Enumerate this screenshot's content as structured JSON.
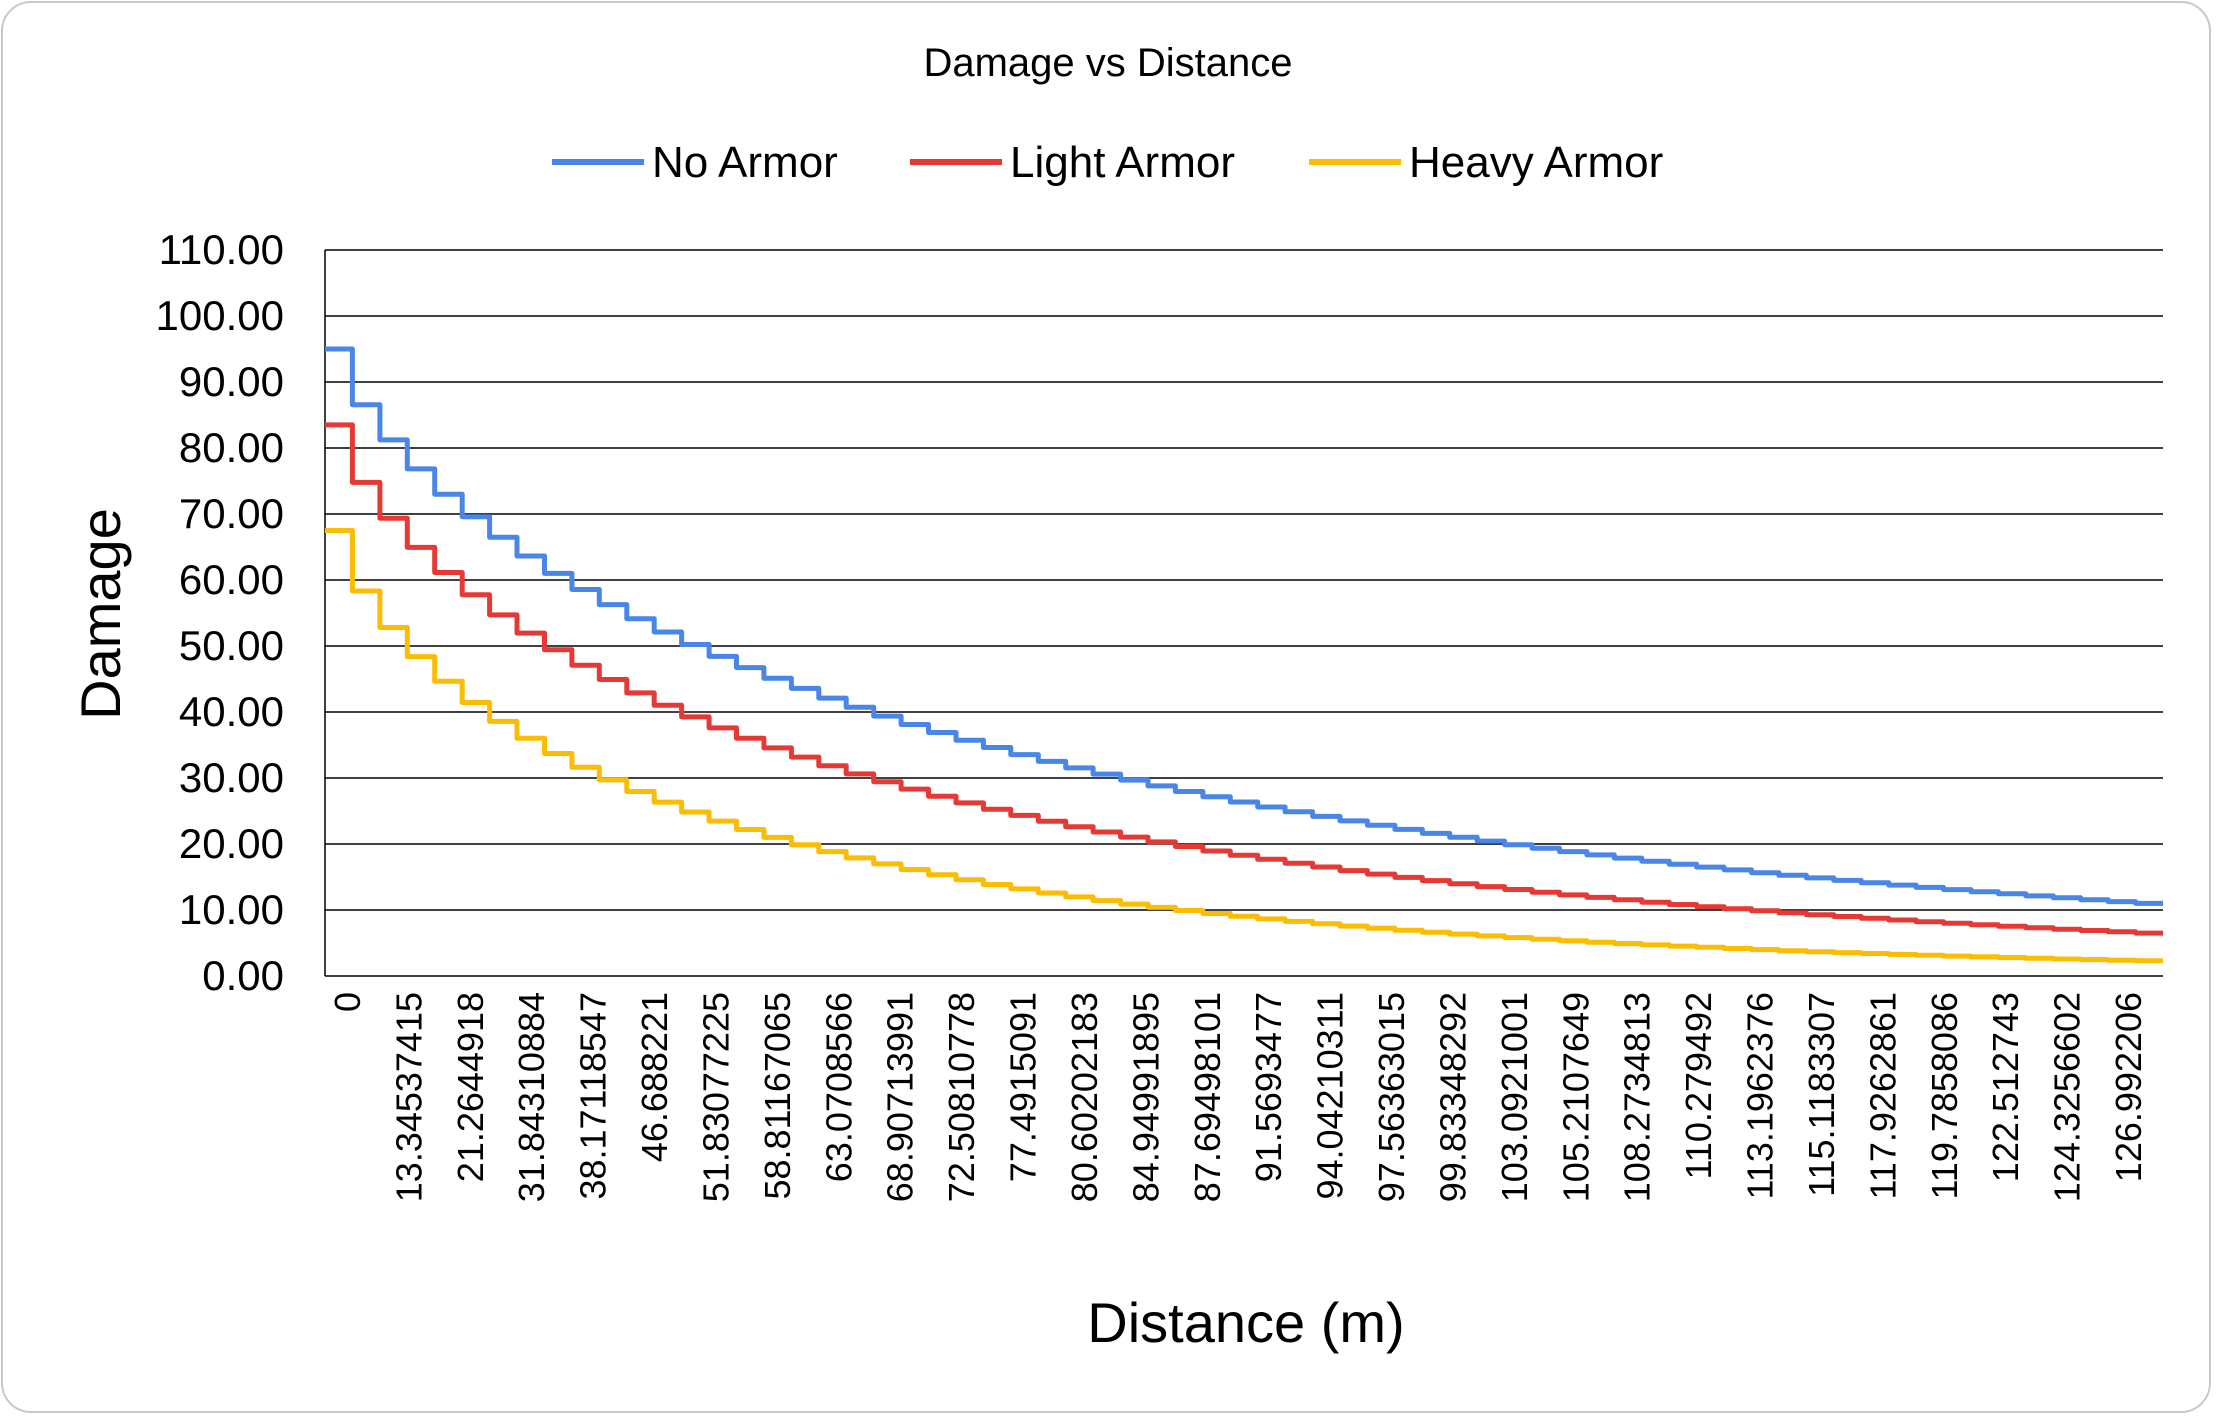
{
  "chart_data": {
    "type": "line",
    "title": "Damage vs Distance",
    "xlabel": "Distance (m)",
    "ylabel": "Damage",
    "ylim": [
      0,
      110
    ],
    "yticks": [
      "0.00",
      "10.00",
      "20.00",
      "30.00",
      "40.00",
      "50.00",
      "60.00",
      "70.00",
      "80.00",
      "90.00",
      "100.00",
      "110.00"
    ],
    "x_tick_labels": [
      "0",
      "13.34537415",
      "21.2644918",
      "31.84310884",
      "38.17118547",
      "46.688221",
      "51.83077225",
      "58.81167065",
      "63.0708566",
      "68.90713991",
      "72.50810778",
      "77.4915091",
      "80.60202183",
      "84.94991895",
      "87.69498101",
      "91.5693477",
      "94.04210311",
      "97.56363015",
      "99.83348292",
      "103.0921001",
      "105.2107649",
      "108.2734813",
      "110.279492",
      "113.1962376",
      "115.1183307",
      "117.9262861",
      "119.7858086",
      "122.512743",
      "124.3256602",
      "126.992206"
    ],
    "x_count": 134,
    "grid": true,
    "legend_position": "top",
    "series": [
      {
        "name": "No Armor",
        "color": "#4a86e8",
        "start": 95.0,
        "end": 11.0
      },
      {
        "name": "Light Armor",
        "color": "#e53935",
        "start": 83.5,
        "end": 6.5
      },
      {
        "name": "Heavy Armor",
        "color": "#fbbc04",
        "start": 67.5,
        "end": 2.3
      }
    ]
  }
}
